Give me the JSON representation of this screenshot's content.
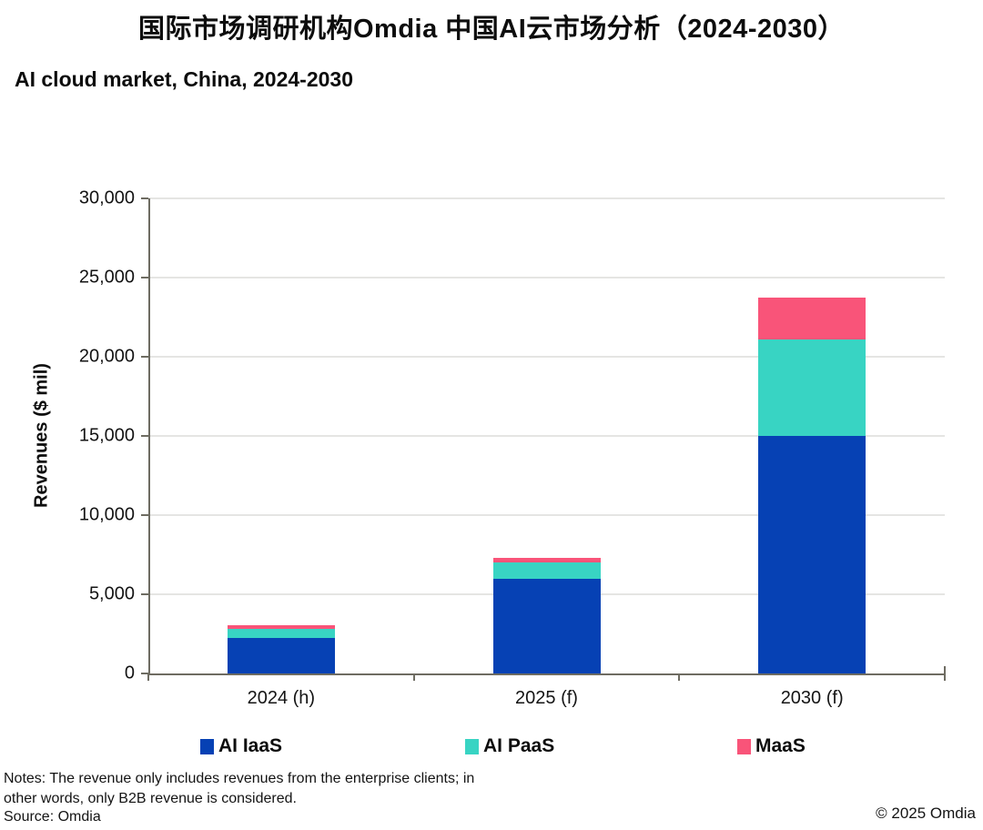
{
  "header": {
    "title": "国际市场调研机构Omdia 中国AI云市场分析（2024-2030）",
    "subtitle": "AI cloud market, China, 2024-2030"
  },
  "chart_data": {
    "type": "bar",
    "stacked": true,
    "title": "AI cloud market, China, 2024-2030",
    "categories": [
      "2024 (h)",
      "2025 (f)",
      "2030 (f)"
    ],
    "series": [
      {
        "name": "AI IaaS",
        "color": "#0641b4",
        "values": [
          2250,
          5950,
          15000
        ]
      },
      {
        "name": "AI PaaS",
        "color": "#38d4c3",
        "values": [
          570,
          1050,
          6100
        ]
      },
      {
        "name": "MaaS",
        "color": "#f95479",
        "values": [
          230,
          320,
          2650
        ]
      }
    ],
    "totals": [
      3050,
      7320,
      23750
    ],
    "xlabel": "",
    "ylabel": "Revenues ($ mil)",
    "ylim": [
      0,
      30000
    ],
    "ytick_step": 5000,
    "ytick_labels": [
      "0",
      "5,000",
      "10,000",
      "15,000",
      "20,000",
      "25,000",
      "30,000"
    ],
    "grid": true,
    "legend_position": "bottom"
  },
  "footer": {
    "notes": "Notes: The revenue only includes revenues from the enterprise clients; in other words, only B2B revenue is considered.",
    "source": "Source: Omdia",
    "copyright": "© 2025 Omdia"
  },
  "colors": {
    "axis": "#6e6c62",
    "grid": "#e5e5e3",
    "text": "#141414"
  }
}
